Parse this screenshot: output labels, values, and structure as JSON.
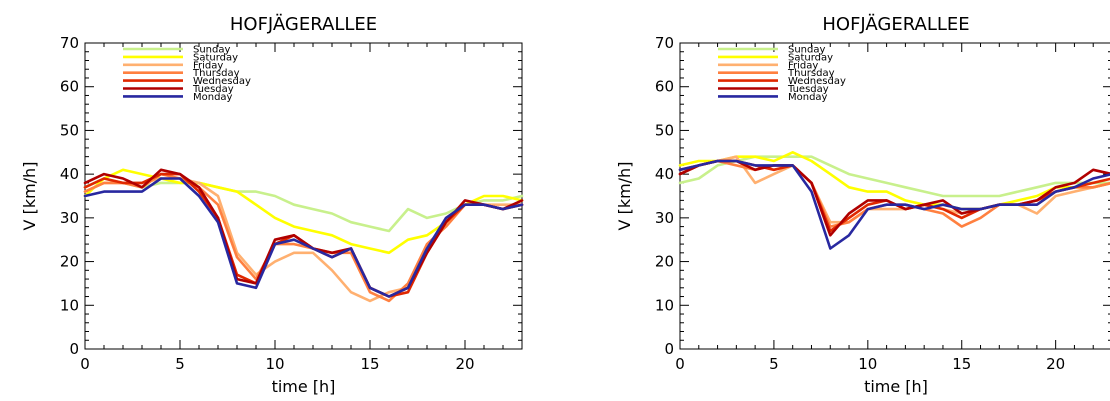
{
  "chart_data": [
    {
      "type": "line",
      "title": "HOFJÄGERALLEE",
      "xlabel": "time [h]",
      "ylabel": "V [km/h]",
      "xlim": [
        0,
        23
      ],
      "ylim": [
        0,
        70
      ],
      "xticks": [
        0,
        5,
        10,
        15,
        20
      ],
      "yticks": [
        0,
        10,
        20,
        30,
        40,
        50,
        60,
        70
      ],
      "legend_position": "top-left",
      "grid": false,
      "x": [
        0,
        1,
        2,
        3,
        4,
        5,
        6,
        7,
        8,
        9,
        10,
        11,
        12,
        13,
        14,
        15,
        16,
        17,
        18,
        19,
        20,
        21,
        22,
        23
      ],
      "series": [
        {
          "name": "Sunday",
          "color": "#c8f08c",
          "values": [
            37,
            39,
            38,
            37,
            38,
            38,
            38,
            37,
            36,
            36,
            35,
            33,
            32,
            31,
            29,
            28,
            27,
            32,
            30,
            31,
            33,
            34,
            34,
            35
          ]
        },
        {
          "name": "Saturday",
          "color": "#ffff00",
          "values": [
            35,
            39,
            41,
            40,
            39,
            38,
            38,
            37,
            36,
            33,
            30,
            28,
            27,
            26,
            24,
            23,
            22,
            25,
            26,
            29,
            33,
            35,
            35,
            34
          ]
        },
        {
          "name": "Friday",
          "color": "#ffb070",
          "values": [
            36,
            38,
            38,
            38,
            39,
            39,
            38,
            35,
            22,
            17,
            20,
            22,
            22,
            18,
            13,
            11,
            13,
            14,
            22,
            30,
            33,
            33,
            33,
            33
          ]
        },
        {
          "name": "Thursday",
          "color": "#ff8040",
          "values": [
            36,
            38,
            38,
            37,
            40,
            39,
            37,
            33,
            21,
            16,
            24,
            24,
            23,
            22,
            22,
            13,
            11,
            15,
            24,
            28,
            33,
            33,
            32,
            33
          ]
        },
        {
          "name": "Wednesday",
          "color": "#e02800",
          "values": [
            37,
            39,
            38,
            38,
            40,
            40,
            36,
            30,
            17,
            15,
            24,
            26,
            23,
            21,
            23,
            14,
            12,
            13,
            22,
            29,
            33,
            33,
            32,
            33
          ]
        },
        {
          "name": "Tuesday",
          "color": "#b00000",
          "values": [
            38,
            40,
            39,
            37,
            41,
            40,
            37,
            30,
            16,
            15,
            25,
            26,
            23,
            22,
            23,
            14,
            12,
            14,
            22,
            29,
            34,
            33,
            32,
            34
          ]
        },
        {
          "name": "Monday",
          "color": "#2828a0",
          "values": [
            35,
            36,
            36,
            36,
            39,
            39,
            35,
            29,
            15,
            14,
            24,
            25,
            23,
            21,
            23,
            14,
            12,
            14,
            23,
            30,
            33,
            33,
            32,
            33
          ]
        }
      ]
    },
    {
      "type": "line",
      "title": "HOFJÄGERALLEE",
      "xlabel": "time [h]",
      "ylabel": "V [km/h]",
      "xlim": [
        0,
        23
      ],
      "ylim": [
        0,
        70
      ],
      "xticks": [
        0,
        5,
        10,
        15,
        20
      ],
      "yticks": [
        0,
        10,
        20,
        30,
        40,
        50,
        60,
        70
      ],
      "legend_position": "top-left",
      "grid": false,
      "x": [
        0,
        1,
        2,
        3,
        4,
        5,
        6,
        7,
        8,
        9,
        10,
        11,
        12,
        13,
        14,
        15,
        16,
        17,
        18,
        19,
        20,
        21,
        22,
        23
      ],
      "series": [
        {
          "name": "Sunday",
          "color": "#c8f08c",
          "values": [
            38,
            39,
            42,
            43,
            44,
            44,
            44,
            44,
            42,
            40,
            39,
            38,
            37,
            36,
            35,
            35,
            35,
            35,
            36,
            37,
            38,
            38,
            38,
            38
          ]
        },
        {
          "name": "Saturday",
          "color": "#ffff00",
          "values": [
            42,
            43,
            43,
            44,
            44,
            43,
            45,
            43,
            40,
            37,
            36,
            36,
            34,
            33,
            33,
            32,
            32,
            33,
            34,
            35,
            37,
            37,
            37,
            38
          ]
        },
        {
          "name": "Friday",
          "color": "#ffb070",
          "values": [
            41,
            42,
            43,
            44,
            38,
            40,
            42,
            38,
            29,
            29,
            32,
            32,
            32,
            33,
            32,
            31,
            32,
            33,
            33,
            31,
            35,
            36,
            37,
            38
          ]
        },
        {
          "name": "Thursday",
          "color": "#ff8040",
          "values": [
            41,
            42,
            43,
            42,
            41,
            42,
            42,
            38,
            28,
            29,
            32,
            33,
            33,
            32,
            31,
            28,
            30,
            33,
            33,
            33,
            36,
            37,
            37,
            38
          ]
        },
        {
          "name": "Wednesday",
          "color": "#e02800",
          "values": [
            40,
            42,
            43,
            43,
            42,
            41,
            42,
            38,
            27,
            30,
            33,
            34,
            32,
            33,
            32,
            30,
            32,
            33,
            33,
            34,
            36,
            37,
            38,
            39
          ]
        },
        {
          "name": "Tuesday",
          "color": "#b00000",
          "values": [
            40,
            42,
            43,
            43,
            41,
            42,
            42,
            38,
            26,
            31,
            34,
            34,
            32,
            33,
            34,
            31,
            32,
            33,
            33,
            34,
            37,
            38,
            41,
            40
          ]
        },
        {
          "name": "Monday",
          "color": "#2828a0",
          "values": [
            41,
            42,
            43,
            43,
            42,
            42,
            42,
            36,
            23,
            26,
            32,
            33,
            33,
            32,
            33,
            32,
            32,
            33,
            33,
            33,
            36,
            37,
            39,
            40
          ]
        }
      ]
    }
  ]
}
